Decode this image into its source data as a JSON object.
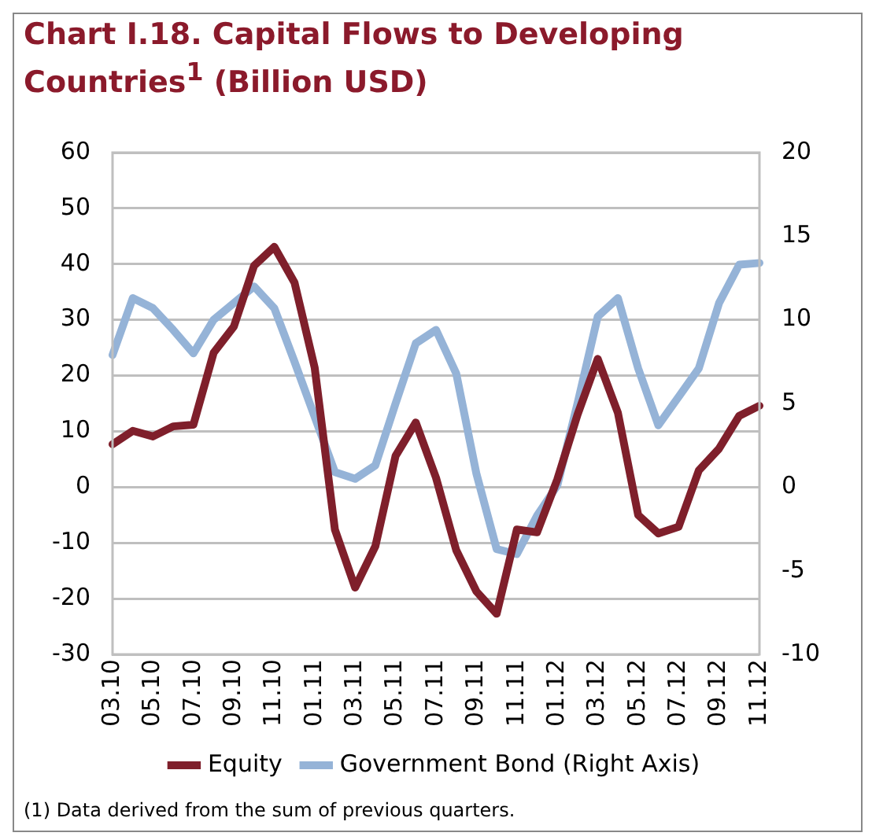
{
  "chart_data": {
    "type": "line",
    "title": "Chart I.18. Capital Flows to Developing Countries$^{1}$ (Billion USD)",
    "categories": [
      "03.10",
      null,
      "05.10",
      null,
      "07.10",
      null,
      "09.10",
      null,
      "11.10",
      null,
      "01.11",
      null,
      "03.11",
      null,
      "05.11",
      null,
      "07.11",
      null,
      "09.11",
      null,
      "11.11",
      null,
      "01.12",
      null,
      "03.12",
      null,
      "05.12",
      null,
      "07.12",
      null,
      "09.12",
      null,
      "11.12"
    ],
    "series": [
      {
        "name": "Equity",
        "color": "#7f1f2b",
        "values": [
          7.7,
          10.1,
          9.1,
          10.9,
          11.2,
          24.1,
          28.8,
          39.7,
          43.1,
          36.7,
          21.4,
          -7.6,
          -18.0,
          -10.6,
          5.6,
          11.6,
          1.7,
          -11.3,
          -18.7,
          -22.7,
          -7.6,
          -8.1,
          1.4,
          13,
          23.0,
          13.3,
          -5.0,
          -8.3,
          -7.1,
          3.0,
          6.9,
          12.8,
          14.6
        ]
      },
      {
        "name": "Government Bond (Right Axis)",
        "color": "#95b3d7",
        "axis": "y2",
        "values": [
          7.9,
          11.3,
          10.7,
          9.4,
          8.0,
          10.0,
          11.0,
          12.0,
          10.7,
          7.5,
          4.2,
          0.9,
          0.5,
          1.3,
          5.0,
          8.6,
          9.4,
          6.8,
          0.8,
          -3.7,
          -4.0,
          -1.7,
          0.1,
          5.0,
          10.2,
          11.3,
          7.1,
          3.7,
          5.4,
          7.1,
          11.0,
          13.3,
          13.4
        ]
      }
    ],
    "ylim": [
      -30,
      60
    ],
    "yticks": [
      -30,
      -20,
      -10,
      0,
      10,
      20,
      30,
      40,
      50,
      60
    ],
    "y2lim": [
      -10,
      20
    ],
    "y2ticks": [
      -10,
      -5,
      0,
      5,
      10,
      15,
      20
    ],
    "grid": "y",
    "legend": "bottom",
    "marker": "none",
    "line_style": "solid",
    "annotations": [
      "(1) Data derived from the sum of previous quarters."
    ]
  }
}
